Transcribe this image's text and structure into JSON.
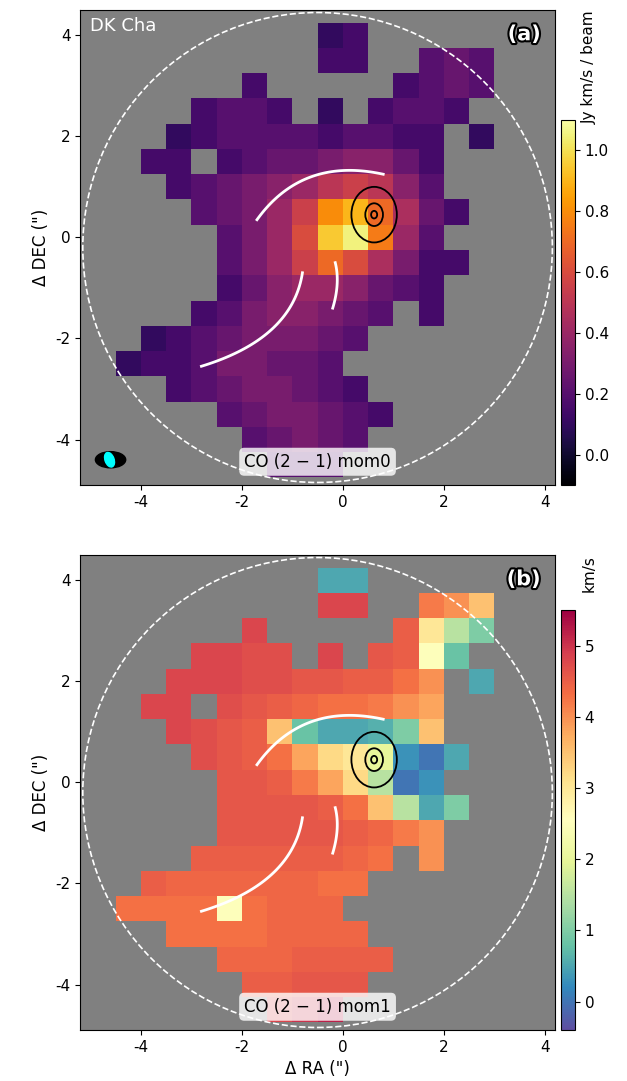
{
  "chart_data": [
    {
      "type": "heatmap",
      "annotations": [
        "DK Cha",
        "(a)"
      ],
      "label": "CO (2 − 1) mom0",
      "y_label": "Δ DEC (\")",
      "xlim": [
        -5.2,
        4.2
      ],
      "ylim": [
        -4.9,
        4.5
      ],
      "xticks": [
        -4,
        -2,
        0,
        2,
        4
      ],
      "yticks": [
        -4,
        -2,
        0,
        2,
        4
      ],
      "color": "inferno",
      "colorbar": {
        "label": "Jy km/s / beam",
        "range": [
          -0.1,
          1.1
        ],
        "ticks": [
          0.0,
          0.2,
          0.4,
          0.6,
          0.8,
          1.0
        ]
      },
      "x": [
        -4.75,
        -4.25,
        -3.75,
        -3.25,
        -2.75,
        -2.25,
        -1.75,
        -1.25,
        -0.75,
        -0.25,
        0.25,
        0.75,
        1.25,
        1.75,
        2.25,
        2.75,
        3.25,
        3.75
      ],
      "y": [
        4.0,
        3.5,
        3.0,
        2.5,
        2.0,
        1.5,
        1.0,
        0.5,
        0.0,
        -0.5,
        -1.0,
        -1.5,
        -2.0,
        -2.5,
        -3.0,
        -3.5,
        -4.0,
        -4.5
      ],
      "cells": [
        [
          null,
          null,
          null,
          null,
          null,
          null,
          null,
          null,
          null,
          0.1,
          0.15,
          null,
          null,
          null,
          null,
          null,
          null,
          null
        ],
        [
          null,
          null,
          null,
          null,
          null,
          null,
          null,
          null,
          null,
          0.15,
          0.15,
          null,
          null,
          0.2,
          0.25,
          0.2,
          null,
          null
        ],
        [
          null,
          null,
          null,
          null,
          null,
          null,
          0.15,
          null,
          null,
          null,
          null,
          null,
          0.15,
          0.2,
          0.25,
          0.2,
          null,
          null
        ],
        [
          null,
          null,
          null,
          null,
          0.15,
          0.2,
          0.2,
          0.15,
          null,
          0.1,
          null,
          0.15,
          0.2,
          0.2,
          0.15,
          null,
          null,
          null
        ],
        [
          null,
          null,
          null,
          0.1,
          0.15,
          0.2,
          0.2,
          0.2,
          0.2,
          0.15,
          0.2,
          0.2,
          0.15,
          0.15,
          null,
          0.1,
          null,
          null
        ],
        [
          null,
          null,
          0.15,
          0.15,
          null,
          0.15,
          0.2,
          0.25,
          0.25,
          0.3,
          0.35,
          0.35,
          0.25,
          0.15,
          null,
          null,
          null,
          null
        ],
        [
          null,
          null,
          null,
          0.15,
          0.2,
          0.25,
          0.3,
          0.35,
          0.4,
          0.5,
          0.55,
          0.5,
          0.35,
          0.2,
          null,
          null,
          null,
          null
        ],
        [
          null,
          null,
          null,
          null,
          0.2,
          0.25,
          0.3,
          0.4,
          0.55,
          0.8,
          0.9,
          0.7,
          0.45,
          0.25,
          0.15,
          null,
          null,
          null
        ],
        [
          null,
          null,
          null,
          null,
          null,
          0.2,
          0.3,
          0.4,
          0.6,
          0.95,
          1.05,
          0.75,
          0.4,
          0.2,
          null,
          null,
          null,
          null
        ],
        [
          null,
          null,
          null,
          null,
          null,
          0.2,
          0.3,
          0.4,
          0.55,
          0.7,
          0.6,
          0.45,
          0.3,
          0.15,
          0.15,
          null,
          null,
          null
        ],
        [
          null,
          null,
          null,
          null,
          null,
          0.15,
          0.25,
          0.35,
          0.4,
          0.4,
          0.35,
          0.25,
          0.2,
          0.15,
          null,
          null,
          null,
          null
        ],
        [
          null,
          null,
          null,
          null,
          0.15,
          0.2,
          0.3,
          0.35,
          0.35,
          0.3,
          0.25,
          0.2,
          null,
          0.15,
          null,
          null,
          null,
          null
        ],
        [
          null,
          null,
          0.1,
          0.15,
          0.2,
          0.25,
          0.3,
          0.3,
          0.3,
          0.25,
          0.2,
          null,
          null,
          null,
          null,
          null,
          null,
          null
        ],
        [
          null,
          0.1,
          0.15,
          0.15,
          0.2,
          0.3,
          0.3,
          0.25,
          0.25,
          0.2,
          null,
          null,
          null,
          null,
          null,
          null,
          null,
          null
        ],
        [
          null,
          null,
          null,
          0.15,
          0.2,
          0.25,
          0.3,
          0.3,
          0.25,
          0.2,
          0.15,
          null,
          null,
          null,
          null,
          null,
          null,
          null
        ],
        [
          null,
          null,
          null,
          null,
          null,
          0.2,
          0.25,
          0.3,
          0.3,
          0.25,
          0.2,
          0.15,
          null,
          null,
          null,
          null,
          null,
          null
        ],
        [
          null,
          null,
          null,
          null,
          null,
          null,
          0.2,
          0.25,
          0.3,
          0.25,
          0.2,
          null,
          null,
          null,
          null,
          null,
          null,
          null
        ],
        [
          null,
          null,
          null,
          null,
          null,
          null,
          null,
          0.2,
          0.2,
          0.2,
          null,
          null,
          null,
          null,
          null,
          null,
          null,
          null
        ]
      ]
    },
    {
      "type": "heatmap",
      "annotations": [
        "(b)"
      ],
      "label": "CO (2 − 1) mom1",
      "x_label": "Δ RA (\")",
      "y_label": "Δ DEC (\")",
      "xlim": [
        -5.2,
        4.2
      ],
      "ylim": [
        -4.9,
        4.5
      ],
      "xticks": [
        -4,
        -2,
        0,
        2,
        4
      ],
      "yticks": [
        -4,
        -2,
        0,
        2,
        4
      ],
      "color": "Spectral_r",
      "colorbar": {
        "label": "km/s",
        "range": [
          -0.4,
          5.5
        ],
        "ticks": [
          0,
          1,
          2,
          3,
          4,
          5
        ]
      },
      "x": [
        -4.75,
        -4.25,
        -3.75,
        -3.25,
        -2.75,
        -2.25,
        -1.75,
        -1.25,
        -0.75,
        -0.25,
        0.25,
        0.75,
        1.25,
        1.75,
        2.25,
        2.75,
        3.25,
        3.75
      ],
      "y": [
        4.0,
        3.5,
        3.0,
        2.5,
        2.0,
        1.5,
        1.0,
        0.5,
        0.0,
        -0.5,
        -1.0,
        -1.5,
        -2.0,
        -2.5,
        -3.0,
        -3.5,
        -4.0,
        -4.5
      ],
      "cells": [
        [
          null,
          null,
          null,
          null,
          null,
          null,
          null,
          null,
          null,
          0.5,
          0.5,
          null,
          null,
          null,
          null,
          null,
          null,
          null
        ],
        [
          null,
          null,
          null,
          null,
          null,
          null,
          null,
          null,
          null,
          4.8,
          4.8,
          null,
          null,
          4.2,
          4.0,
          3.5,
          null,
          null
        ],
        [
          null,
          null,
          null,
          null,
          null,
          null,
          4.8,
          null,
          null,
          null,
          null,
          null,
          4.5,
          3.0,
          1.5,
          1.0,
          null,
          null
        ],
        [
          null,
          null,
          null,
          null,
          4.8,
          4.8,
          4.7,
          4.7,
          null,
          4.8,
          null,
          4.6,
          4.5,
          2.5,
          0.8,
          null,
          null,
          null
        ],
        [
          null,
          null,
          null,
          4.8,
          4.8,
          4.8,
          4.7,
          4.7,
          4.6,
          4.6,
          4.5,
          4.5,
          4.3,
          4.0,
          null,
          0.5,
          null,
          null
        ],
        [
          null,
          null,
          4.8,
          4.8,
          null,
          4.7,
          4.6,
          4.5,
          4.4,
          4.3,
          4.3,
          4.2,
          4.0,
          3.8,
          null,
          null,
          null,
          null
        ],
        [
          null,
          null,
          null,
          4.8,
          4.7,
          4.6,
          4.5,
          3.5,
          0.8,
          0.5,
          0.5,
          0.6,
          1.0,
          3.5,
          null,
          null,
          null,
          null
        ],
        [
          null,
          null,
          null,
          null,
          4.7,
          4.6,
          4.5,
          4.3,
          3.8,
          3.2,
          3.0,
          2.0,
          0.3,
          0.0,
          0.5,
          null,
          null,
          null
        ],
        [
          null,
          null,
          null,
          null,
          null,
          4.6,
          4.6,
          4.5,
          4.2,
          3.8,
          3.2,
          1.5,
          0.0,
          0.3,
          null,
          null,
          null,
          null
        ],
        [
          null,
          null,
          null,
          null,
          null,
          4.6,
          4.6,
          4.6,
          4.6,
          4.5,
          4.3,
          3.5,
          1.5,
          0.5,
          1.0,
          null,
          null,
          null
        ],
        [
          null,
          null,
          null,
          null,
          null,
          4.6,
          4.6,
          4.6,
          4.6,
          4.6,
          4.5,
          4.4,
          4.2,
          4.0,
          null,
          null,
          null,
          null
        ],
        [
          null,
          null,
          null,
          null,
          4.5,
          4.5,
          4.5,
          4.5,
          4.5,
          4.5,
          4.4,
          4.3,
          null,
          4.0,
          null,
          null,
          null,
          null
        ],
        [
          null,
          null,
          4.5,
          4.4,
          4.4,
          4.4,
          4.4,
          4.4,
          4.4,
          4.3,
          4.3,
          null,
          null,
          null,
          null,
          null,
          null,
          null
        ],
        [
          null,
          4.3,
          4.3,
          4.3,
          4.3,
          2.5,
          4.3,
          4.4,
          4.4,
          4.4,
          null,
          null,
          null,
          null,
          null,
          null,
          null,
          null
        ],
        [
          null,
          null,
          null,
          4.3,
          4.3,
          4.3,
          4.3,
          4.4,
          4.4,
          4.4,
          4.4,
          null,
          null,
          null,
          null,
          null,
          null,
          null
        ],
        [
          null,
          null,
          null,
          null,
          null,
          4.4,
          4.4,
          4.4,
          4.5,
          4.5,
          4.5,
          4.5,
          null,
          null,
          null,
          null,
          null,
          null
        ],
        [
          null,
          null,
          null,
          null,
          null,
          null,
          4.5,
          4.5,
          4.6,
          4.6,
          4.6,
          null,
          null,
          null,
          null,
          null,
          null,
          null
        ],
        [
          null,
          null,
          null,
          null,
          null,
          null,
          null,
          4.8,
          5.0,
          5.2,
          null,
          null,
          null,
          null,
          null,
          null,
          null,
          null
        ]
      ]
    }
  ]
}
